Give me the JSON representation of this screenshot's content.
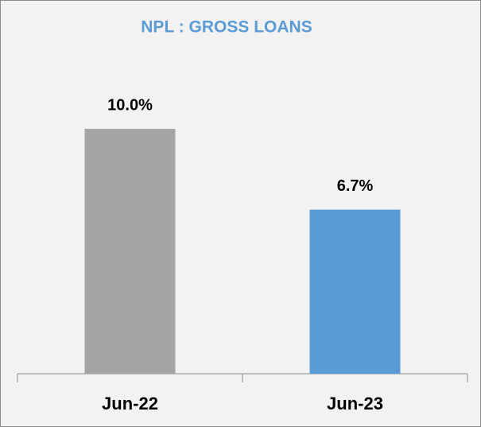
{
  "chart_data": {
    "type": "bar",
    "title": "NPL : GROSS LOANS",
    "categories": [
      "Jun-22",
      "Jun-23"
    ],
    "values": [
      10.0,
      6.7
    ],
    "value_labels": [
      "10.0%",
      "6.7%"
    ],
    "colors": [
      "#a5a5a5",
      "#5b9bd5"
    ]
  }
}
